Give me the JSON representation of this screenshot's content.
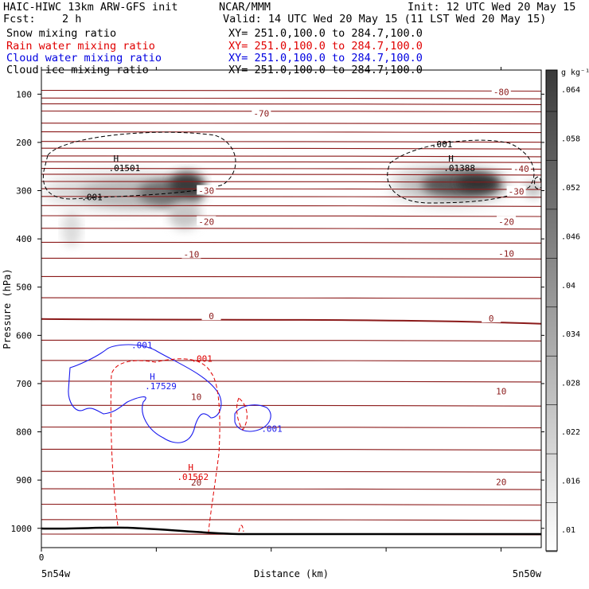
{
  "header": {
    "model": "HAIC-HIWC 13km ARW-GFS init",
    "org": "NCAR/MMM",
    "init": "Init: 12 UTC Wed 20 May 15",
    "fcst_label": "Fcst:",
    "fcst_value": "2 h",
    "valid": "Valid: 14 UTC Wed 20 May 15 (11 LST Wed 20 May 15)"
  },
  "fields": [
    {
      "name": "Snow mixing ratio",
      "xy": "XY= 251.0,100.0 to 284.7,100.0",
      "color": "#000000"
    },
    {
      "name": "Rain water mixing ratio",
      "xy": "XY= 251.0,100.0 to 284.7,100.0",
      "color": "#e00000"
    },
    {
      "name": "Cloud water mixing ratio",
      "xy": "XY= 251.0,100.0 to 284.7,100.0",
      "color": "#0000e0"
    },
    {
      "name": "Cloud ice mixing ratio",
      "xy": "XY= 251.0,100.0 to 284.7,100.0",
      "color": "#000000"
    }
  ],
  "chart_data": {
    "type": "contour",
    "ylabel": "Pressure (hPa)",
    "xlabel": "Distance (km)",
    "x_tick_0": "0",
    "x_left_label": "5n54w",
    "x_right_label": "5n50w",
    "y_ticks": [
      100,
      200,
      300,
      400,
      500,
      600,
      700,
      800,
      900,
      1000
    ],
    "ylim": [
      50,
      1040
    ],
    "colorbar": {
      "unit": "g kg⁻¹",
      "levels": [
        ".01",
        ".016",
        ".022",
        ".028",
        ".034",
        ".04",
        ".046",
        ".052",
        ".058",
        ".064"
      ]
    },
    "temperature_labels": [
      {
        "text": "-80",
        "x": 0.92,
        "p": 95
      },
      {
        "text": "-70",
        "x": 0.44,
        "p": 140
      },
      {
        "text": "-40",
        "x": 0.96,
        "p": 255
      },
      {
        "text": "-30",
        "x": 0.33,
        "p": 300
      },
      {
        "text": "-30",
        "x": 0.95,
        "p": 302
      },
      {
        "text": "-20",
        "x": 0.33,
        "p": 364
      },
      {
        "text": "-20",
        "x": 0.93,
        "p": 364
      },
      {
        "text": "-10",
        "x": 0.3,
        "p": 432
      },
      {
        "text": "-10",
        "x": 0.93,
        "p": 430
      },
      {
        "text": "0",
        "x": 0.34,
        "p": 560
      },
      {
        "text": "0",
        "x": 0.9,
        "p": 565
      },
      {
        "text": "10",
        "x": 0.31,
        "p": 727
      },
      {
        "text": "10",
        "x": 0.92,
        "p": 716
      },
      {
        "text": "20",
        "x": 0.31,
        "p": 905
      },
      {
        "text": "20",
        "x": 0.92,
        "p": 904
      }
    ],
    "ice_max_labels": [
      {
        "H": "H",
        "value": ".01501",
        "x": 0.16,
        "p": 250
      },
      {
        "H": "H",
        "value": ".01388",
        "x": 0.83,
        "p": 250
      }
    ],
    "ice_contour_labels": [
      {
        "text": ".001",
        "x": 0.08,
        "p": 320
      },
      {
        "text": ".001",
        "x": 0.78,
        "p": 210
      }
    ],
    "cloud_water": {
      "H": "H",
      "value": ".17529",
      "x": 0.22,
      "p": 705
    },
    "cloud_water_labels": [
      {
        "text": ".001",
        "x": 0.18,
        "p": 627
      },
      {
        "text": ".001",
        "x": 0.44,
        "p": 800
      }
    ],
    "rain": {
      "H": "H",
      "value": ".01562",
      "x": 0.3,
      "p": 890
    },
    "rain_labels": [
      {
        "text": ".001",
        "x": 0.3,
        "p": 655
      }
    ]
  }
}
